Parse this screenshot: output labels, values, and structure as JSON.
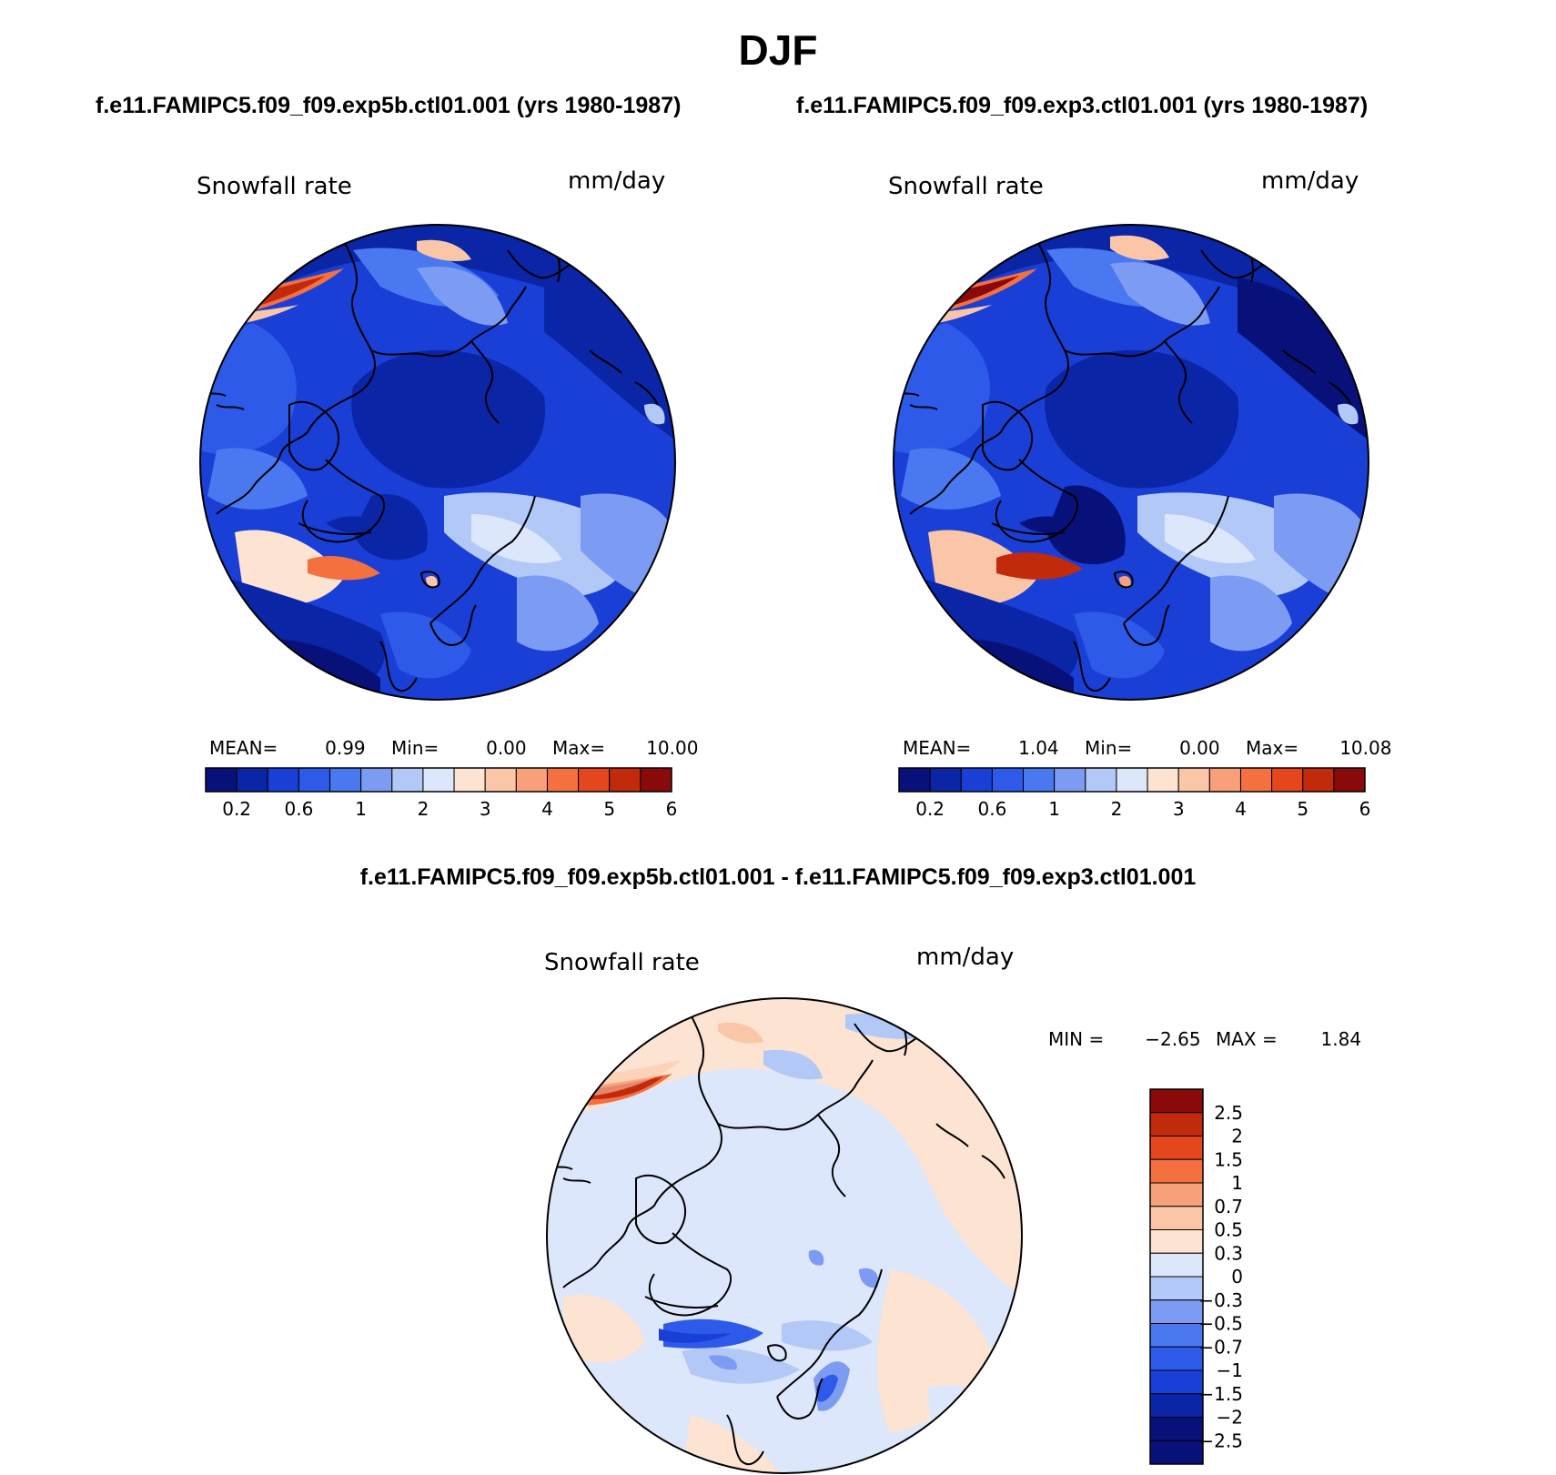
{
  "figure": {
    "season": "DJF",
    "panels": [
      {
        "case_title": "f.e11.FAMIPC5.f09_f09.exp5b.ctl01.001 (yrs 1980-1987)",
        "variable": "Snowfall rate",
        "units": "mm/day",
        "stats": {
          "mean_label": "MEAN=",
          "mean": "0.99",
          "min_label": "Min=",
          "min": "0.00",
          "max_label": "Max=",
          "max": "10.00"
        }
      },
      {
        "case_title": "f.e11.FAMIPC5.f09_f09.exp3.ctl01.001 (yrs 1980-1987)",
        "variable": "Snowfall rate",
        "units": "mm/day",
        "stats": {
          "mean_label": "MEAN=",
          "mean": "1.04",
          "min_label": "Min=",
          "min": "0.00",
          "max_label": "Max=",
          "max": "10.08"
        }
      }
    ],
    "difference": {
      "title": "f.e11.FAMIPC5.f09_f09.exp5b.ctl01.001 - f.e11.FAMIPC5.f09_f09.exp3.ctl01.001",
      "variable": "Snowfall rate",
      "units": "mm/day",
      "min_label": "MIN =",
      "min": "−2.65",
      "max_label": "MAX =",
      "max": "1.84"
    }
  },
  "colorbars": {
    "abs": {
      "colors": [
        "#08117a",
        "#0a25a6",
        "#1a3fd6",
        "#2d5ae8",
        "#4a78f0",
        "#7c9cf3",
        "#b2c8f7",
        "#dde7fb",
        "#fde3d2",
        "#fbc6a7",
        "#f8a07a",
        "#f4703f",
        "#e6461c",
        "#c22a0c",
        "#8a0a0a"
      ],
      "ticks": [
        "0.2",
        "0.6",
        "1",
        "2",
        "3",
        "4",
        "5",
        "6"
      ]
    },
    "diff": {
      "colors": [
        "#8a0a0a",
        "#c22a0c",
        "#e6461c",
        "#f4703f",
        "#f8a07a",
        "#fbc6a7",
        "#fde3d2",
        "#dde7fb",
        "#b2c8f7",
        "#7c9cf3",
        "#4a78f0",
        "#2d5ae8",
        "#1a3fd6",
        "#0a25a6",
        "#08117a"
      ],
      "ticks": [
        "2.5",
        "2",
        "1.5",
        "1",
        "0.7",
        "0.5",
        "0.3",
        "0",
        "−0.3",
        "−0.5",
        "−0.7",
        "−1",
        "−1.5",
        "−2",
        "−2.5"
      ]
    }
  },
  "map_colors": {
    "deep": "#08117a",
    "dark": "#0a25a6",
    "blue": "#1a3fd6",
    "mid": "#2d5ae8",
    "light": "#4a78f0",
    "lighter": "#7c9cf3",
    "pale": "#b2c8f7",
    "paleblue": "#dde7fb",
    "cream": "#fde3d2",
    "peach": "#fbc6a7",
    "orange": "#f4703f",
    "red": "#c22a0c",
    "darkred": "#8a0a0a"
  }
}
